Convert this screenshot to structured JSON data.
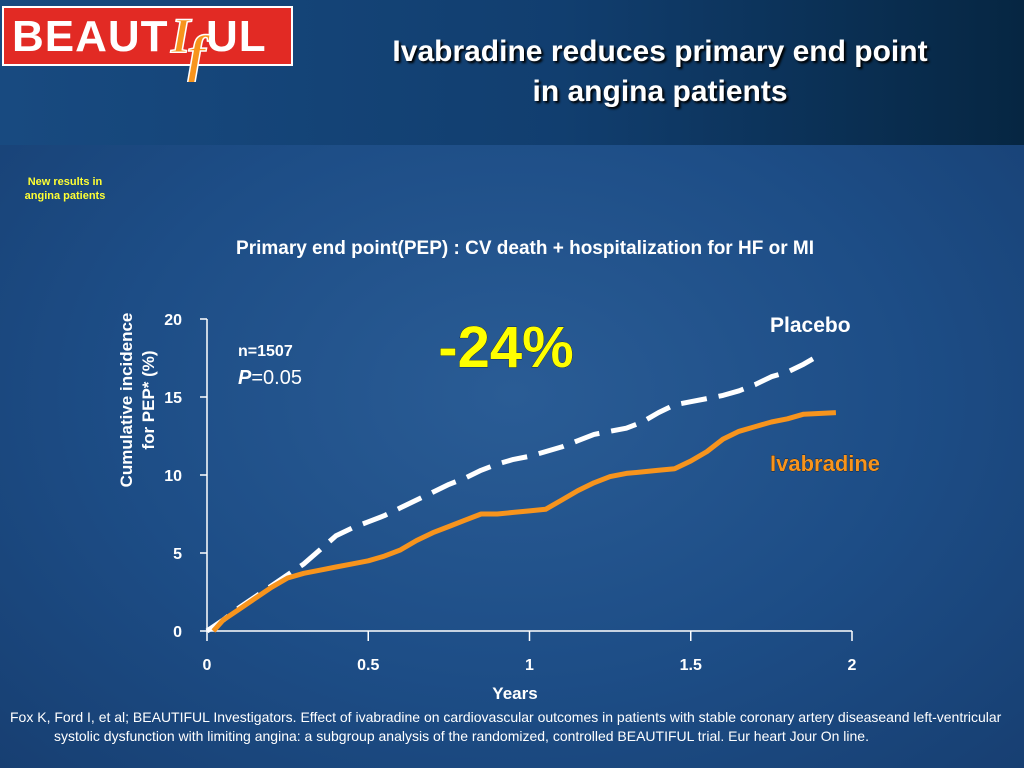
{
  "header": {
    "logo_left": "BEAUT",
    "logo_mid_i": "I",
    "logo_mid_f": "f",
    "logo_right": "UL",
    "title_line1": "Ivabradine reduces primary end point",
    "title_line2": "in angina patients"
  },
  "badge": {
    "line1": "New results in",
    "line2": "angina patients"
  },
  "colors": {
    "placebo": "#ffffff",
    "ivabradine": "#f7941d",
    "highlight": "#ffff00",
    "logo_red": "#e22a24",
    "logo_orange": "#f7941d"
  },
  "chart_data": {
    "type": "line",
    "title": "Primary end point(PEP) : CV death + hospitalization for HF or MI",
    "xlabel": "Years",
    "ylabel_line1": "Cumulative incidence",
    "ylabel_line2": "for PEP*   (%)",
    "xlim": [
      0,
      2
    ],
    "ylim": [
      0,
      20
    ],
    "xticks": [
      "0",
      "0.5",
      "1",
      "1.5",
      "2"
    ],
    "yticks": [
      "0",
      "5",
      "10",
      "15",
      "20"
    ],
    "grid": false,
    "annotations": {
      "n_label": "n=1507",
      "p_italic": "P",
      "p_value": "=0.05",
      "reduction": "-24%"
    },
    "series": [
      {
        "name": "Placebo",
        "style": "dashed",
        "x": [
          0,
          0.05,
          0.1,
          0.15,
          0.2,
          0.25,
          0.3,
          0.35,
          0.4,
          0.45,
          0.5,
          0.55,
          0.6,
          0.65,
          0.7,
          0.75,
          0.8,
          0.85,
          0.9,
          0.95,
          1.0,
          1.05,
          1.1,
          1.15,
          1.2,
          1.25,
          1.3,
          1.35,
          1.4,
          1.45,
          1.5,
          1.55,
          1.6,
          1.65,
          1.7,
          1.75,
          1.8,
          1.85,
          1.9
        ],
        "y": [
          0,
          0.7,
          1.5,
          2.2,
          2.9,
          3.6,
          4.3,
          5.2,
          6.1,
          6.6,
          7.0,
          7.4,
          7.9,
          8.4,
          8.9,
          9.4,
          9.8,
          10.3,
          10.7,
          11.0,
          11.2,
          11.5,
          11.8,
          12.2,
          12.6,
          12.8,
          13.0,
          13.4,
          14.0,
          14.5,
          14.7,
          14.9,
          15.1,
          15.4,
          15.8,
          16.3,
          16.6,
          17.1,
          17.7
        ]
      },
      {
        "name": "Ivabradine",
        "style": "solid",
        "x": [
          0.02,
          0.05,
          0.1,
          0.15,
          0.2,
          0.25,
          0.3,
          0.35,
          0.4,
          0.45,
          0.5,
          0.55,
          0.6,
          0.65,
          0.7,
          0.75,
          0.8,
          0.85,
          0.9,
          0.95,
          1.0,
          1.05,
          1.1,
          1.15,
          1.2,
          1.25,
          1.3,
          1.35,
          1.4,
          1.45,
          1.5,
          1.55,
          1.6,
          1.65,
          1.7,
          1.75,
          1.8,
          1.85,
          1.95
        ],
        "y": [
          0,
          0.7,
          1.4,
          2.1,
          2.8,
          3.4,
          3.7,
          3.9,
          4.1,
          4.3,
          4.5,
          4.8,
          5.2,
          5.8,
          6.3,
          6.7,
          7.1,
          7.5,
          7.5,
          7.6,
          7.7,
          7.8,
          8.4,
          9.0,
          9.5,
          9.9,
          10.1,
          10.2,
          10.3,
          10.4,
          10.9,
          11.5,
          12.3,
          12.8,
          13.1,
          13.4,
          13.6,
          13.9,
          14.0
        ]
      }
    ]
  },
  "citation": "Fox K, Ford I, et al; BEAUTIFUL Investigators. Effect of ivabradine on cardiovascular outcomes in patients with stable coronary artery diseaseand left-ventricular systolic dysfunction with limiting angina: a subgroup analysis of the randomized, controlled BEAUTIFUL trial. Eur heart Jour On line."
}
